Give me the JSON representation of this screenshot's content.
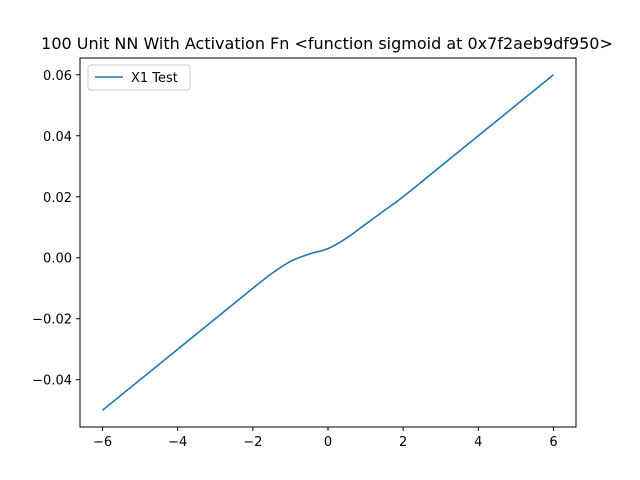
{
  "chart_data": {
    "type": "line",
    "title": "100 Unit NN With Activation Fn <function sigmoid at 0x7f2aeb9df950>",
    "xlabel": "",
    "ylabel": "",
    "xlim": [
      -6.6,
      6.6
    ],
    "ylim": [
      -0.0555,
      0.0655
    ],
    "x_ticks": [
      -6,
      -4,
      -2,
      0,
      2,
      4,
      6
    ],
    "x_tick_labels": [
      "−6",
      "−4",
      "−2",
      "0",
      "2",
      "4",
      "6"
    ],
    "y_ticks": [
      -0.04,
      -0.02,
      0.0,
      0.02,
      0.04,
      0.06
    ],
    "y_tick_labels": [
      "−0.04",
      "−0.02",
      "0.00",
      "0.02",
      "0.04",
      "0.06"
    ],
    "grid": false,
    "legend_position": "top-left",
    "series": [
      {
        "name": "X1 Test",
        "color": "#1f77b4",
        "x": [
          -6,
          -5,
          -4,
          -3,
          -2,
          -1.5,
          -1,
          -0.5,
          0,
          0.5,
          1,
          1.5,
          2,
          3,
          4,
          5,
          6
        ],
        "y": [
          -0.05,
          -0.04,
          -0.03,
          -0.02,
          -0.01,
          -0.0052,
          -0.0012,
          0.0012,
          0.003,
          0.0065,
          0.011,
          0.0155,
          0.02,
          0.03,
          0.04,
          0.05,
          0.06
        ]
      }
    ]
  }
}
